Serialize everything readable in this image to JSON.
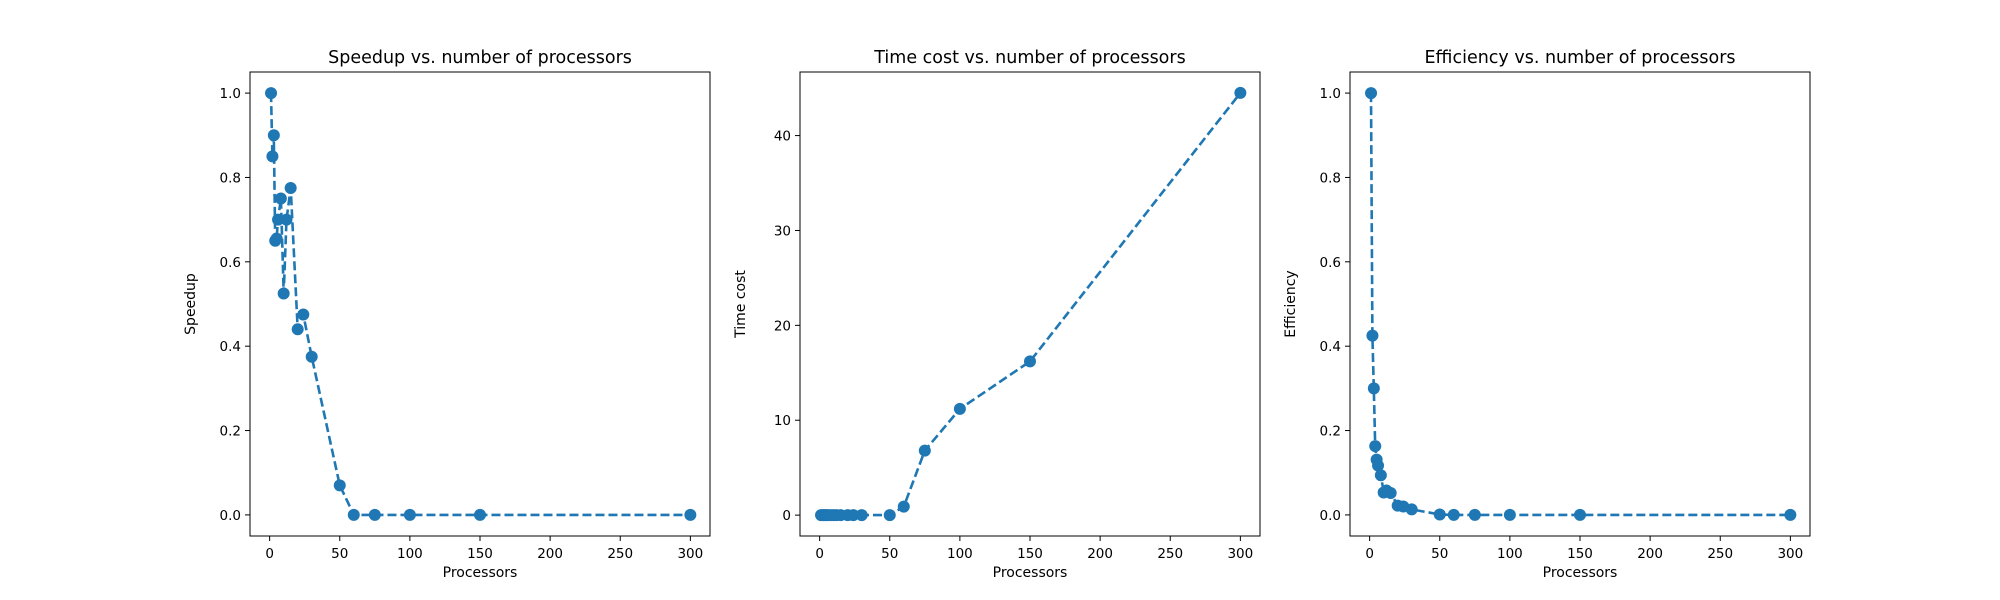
{
  "chart_data": [
    {
      "type": "line",
      "title": "Speedup vs. number of processors",
      "xlabel": "Processors",
      "ylabel": "Speedup",
      "xlim": [
        -14,
        314
      ],
      "ylim": [
        -0.05,
        1.05
      ],
      "xticks": [
        0,
        50,
        100,
        150,
        200,
        250,
        300
      ],
      "yticks": [
        0.0,
        0.2,
        0.4,
        0.6,
        0.8,
        1.0
      ],
      "series": [
        {
          "x": [
            1,
            2,
            3,
            4,
            5,
            6,
            8,
            10,
            12,
            15,
            20,
            24,
            30,
            50,
            60,
            75,
            100,
            150,
            300
          ],
          "y": [
            1.0,
            0.85,
            0.9,
            0.65,
            0.655,
            0.7,
            0.75,
            0.525,
            0.7,
            0.775,
            0.44,
            0.475,
            0.375,
            0.07,
            0.0,
            0.0,
            0.0,
            0.0,
            0.0
          ]
        }
      ],
      "color": "#1f77b4",
      "grid": false,
      "line_style": "dashed",
      "marker": "circle"
    },
    {
      "type": "line",
      "title": "Time cost vs. number of processors",
      "xlabel": "Processors",
      "ylabel": "Time cost",
      "xlim": [
        -14,
        314
      ],
      "ylim": [
        -2.2,
        46.7
      ],
      "xticks": [
        0,
        50,
        100,
        150,
        200,
        250,
        300
      ],
      "yticks": [
        0,
        10,
        20,
        30,
        40
      ],
      "series": [
        {
          "x": [
            1,
            2,
            3,
            4,
            5,
            6,
            8,
            10,
            12,
            15,
            20,
            24,
            30,
            50,
            60,
            75,
            100,
            150,
            300
          ],
          "y": [
            0.0,
            0.0,
            0.0,
            0.0,
            0.0,
            0.0,
            0.0,
            0.0,
            0.0,
            0.0,
            0.0,
            0.0,
            0.0,
            0.0,
            0.9,
            6.8,
            11.2,
            16.2,
            44.5
          ]
        }
      ],
      "color": "#1f77b4",
      "grid": false,
      "line_style": "dashed",
      "marker": "circle"
    },
    {
      "type": "line",
      "title": "Efficiency vs. number of processors",
      "xlabel": "Processors",
      "ylabel": "Efficiency",
      "xlim": [
        -14,
        314
      ],
      "ylim": [
        -0.05,
        1.05
      ],
      "xticks": [
        0,
        50,
        100,
        150,
        200,
        250,
        300
      ],
      "yticks": [
        0.0,
        0.2,
        0.4,
        0.6,
        0.8,
        1.0
      ],
      "series": [
        {
          "x": [
            1,
            2,
            3,
            4,
            5,
            6,
            8,
            10,
            12,
            15,
            20,
            24,
            30,
            50,
            60,
            75,
            100,
            150,
            300
          ],
          "y": [
            1.0,
            0.425,
            0.3,
            0.163,
            0.131,
            0.117,
            0.094,
            0.053,
            0.058,
            0.052,
            0.022,
            0.02,
            0.013,
            0.001,
            0.0,
            0.0,
            0.0,
            0.0,
            0.0
          ]
        }
      ],
      "color": "#1f77b4",
      "grid": false,
      "line_style": "dashed",
      "marker": "circle"
    }
  ]
}
